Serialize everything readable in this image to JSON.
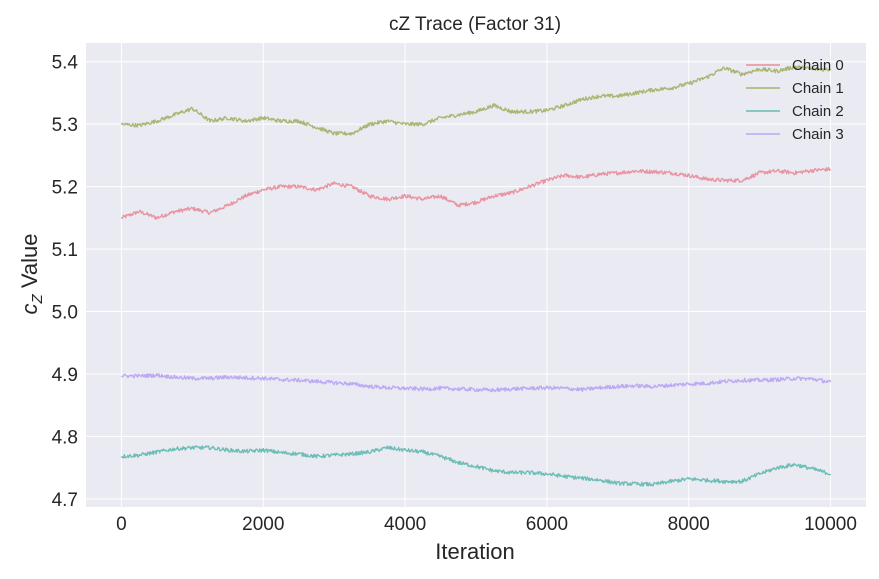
{
  "chart_data": {
    "type": "line",
    "title": "cZ Trace (Factor 31)",
    "xlabel": "Iteration",
    "ylabel_main": "c",
    "ylabel_sub": "Z",
    "ylabel_rest": " Value",
    "xlim": [
      -500,
      10500
    ],
    "ylim": [
      4.687,
      5.43
    ],
    "xticks": [
      0,
      2000,
      4000,
      6000,
      8000,
      10000
    ],
    "yticks": [
      4.7,
      4.8,
      4.9,
      5.0,
      5.1,
      5.2,
      5.3,
      5.4
    ],
    "xtick_labels": [
      "0",
      "2000",
      "4000",
      "6000",
      "8000",
      "10000"
    ],
    "ytick_labels": [
      "4.7",
      "4.8",
      "4.9",
      "5.0",
      "5.1",
      "5.2",
      "5.3",
      "5.4"
    ],
    "grid": true,
    "legend_position": "top-right",
    "x": [
      0,
      250,
      500,
      750,
      1000,
      1250,
      1500,
      1750,
      2000,
      2250,
      2500,
      2750,
      3000,
      3250,
      3500,
      3750,
      4000,
      4250,
      4500,
      4750,
      5000,
      5250,
      5500,
      5750,
      6000,
      6250,
      6500,
      6750,
      7000,
      7250,
      7500,
      7750,
      8000,
      8250,
      8500,
      8750,
      9000,
      9250,
      9500,
      9750,
      10000
    ],
    "series": [
      {
        "name": "Chain 0",
        "color": "#e8909c",
        "values": [
          5.15,
          5.16,
          5.15,
          5.16,
          5.165,
          5.158,
          5.17,
          5.185,
          5.195,
          5.2,
          5.2,
          5.195,
          5.205,
          5.2,
          5.185,
          5.18,
          5.185,
          5.18,
          5.185,
          5.17,
          5.175,
          5.185,
          5.19,
          5.2,
          5.21,
          5.218,
          5.215,
          5.22,
          5.222,
          5.225,
          5.224,
          5.222,
          5.218,
          5.212,
          5.21,
          5.21,
          5.222,
          5.225,
          5.222,
          5.226,
          5.228
        ]
      },
      {
        "name": "Chain 1",
        "color": "#a7b36c",
        "values": [
          5.3,
          5.298,
          5.305,
          5.315,
          5.325,
          5.305,
          5.31,
          5.305,
          5.31,
          5.305,
          5.305,
          5.295,
          5.285,
          5.285,
          5.3,
          5.305,
          5.3,
          5.3,
          5.31,
          5.315,
          5.32,
          5.33,
          5.32,
          5.32,
          5.322,
          5.33,
          5.34,
          5.345,
          5.345,
          5.35,
          5.355,
          5.358,
          5.365,
          5.375,
          5.39,
          5.38,
          5.388,
          5.385,
          5.392,
          5.388,
          5.388
        ]
      },
      {
        "name": "Chain 2",
        "color": "#66bcb3",
        "values": [
          4.768,
          4.77,
          4.775,
          4.78,
          4.782,
          4.782,
          4.778,
          4.776,
          4.778,
          4.774,
          4.772,
          4.768,
          4.77,
          4.772,
          4.775,
          4.782,
          4.778,
          4.775,
          4.768,
          4.758,
          4.752,
          4.745,
          4.742,
          4.742,
          4.74,
          4.736,
          4.733,
          4.73,
          4.725,
          4.724,
          4.723,
          4.728,
          4.732,
          4.73,
          4.728,
          4.728,
          4.74,
          4.75,
          4.755,
          4.748,
          4.74
        ]
      },
      {
        "name": "Chain 3",
        "color": "#b9a7f2",
        "values": [
          4.897,
          4.897,
          4.898,
          4.895,
          4.893,
          4.893,
          4.895,
          4.894,
          4.893,
          4.891,
          4.89,
          4.888,
          4.886,
          4.884,
          4.88,
          4.878,
          4.877,
          4.876,
          4.877,
          4.876,
          4.875,
          4.874,
          4.876,
          4.877,
          4.878,
          4.877,
          4.875,
          4.878,
          4.88,
          4.881,
          4.88,
          4.882,
          4.884,
          4.885,
          4.888,
          4.89,
          4.89,
          4.891,
          4.893,
          4.892,
          4.887
        ]
      }
    ]
  }
}
